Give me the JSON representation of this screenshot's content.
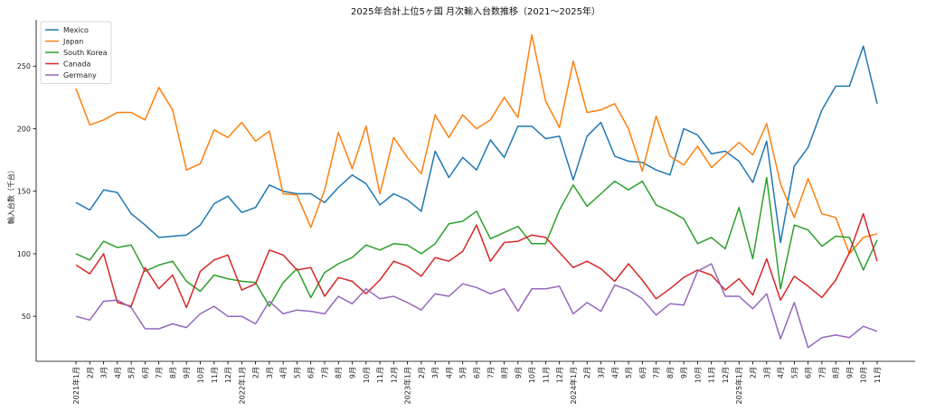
{
  "chart_data": {
    "type": "line",
    "title": "2025年合計上位5ヶ国 月次輸入台数推移（2021〜2025年）",
    "xlabel": "",
    "ylabel": "輸入台数（千台）",
    "ylim": [
      14,
      287
    ],
    "yticks": [
      50,
      100,
      150,
      200,
      250
    ],
    "grid": false,
    "legend_position": "top-left",
    "x": [
      "2021年1月",
      "2月",
      "3月",
      "4月",
      "5月",
      "6月",
      "7月",
      "8月",
      "9月",
      "10月",
      "11月",
      "12月",
      "2022年1月",
      "2月",
      "3月",
      "4月",
      "5月",
      "6月",
      "7月",
      "8月",
      "9月",
      "10月",
      "11月",
      "12月",
      "2023年1月",
      "2月",
      "3月",
      "4月",
      "5月",
      "6月",
      "7月",
      "8月",
      "9月",
      "10月",
      "11月",
      "12月",
      "2024年1月",
      "2月",
      "3月",
      "4月",
      "5月",
      "6月",
      "7月",
      "8月",
      "9月",
      "10月",
      "11月",
      "12月",
      "2025年1月",
      "2月",
      "3月",
      "4月",
      "5月",
      "6月",
      "7月",
      "8月",
      "9月",
      "10月",
      "11月"
    ],
    "series": [
      {
        "name": "Mexico",
        "color": "#1f77b4",
        "values": [
          141,
          135,
          151,
          149,
          132,
          123,
          113,
          114,
          115,
          123,
          140,
          146,
          133,
          137,
          155,
          150,
          148,
          148,
          141,
          153,
          163,
          156,
          139,
          148,
          143,
          134,
          182,
          161,
          177,
          167,
          191,
          177,
          202,
          202,
          192,
          194,
          159,
          194,
          205,
          178,
          174,
          173,
          167,
          163,
          200,
          195,
          180,
          182,
          174,
          157,
          190,
          109,
          170,
          185,
          215,
          234,
          234,
          266,
          220
        ]
      },
      {
        "name": "Japan",
        "color": "#ff7f0e",
        "values": [
          232,
          203,
          207,
          213,
          213,
          207,
          233,
          215,
          167,
          172,
          199,
          193,
          205,
          190,
          198,
          148,
          147,
          121,
          151,
          197,
          168,
          202,
          148,
          193,
          177,
          164,
          211,
          193,
          211,
          200,
          207,
          225,
          209,
          275,
          222,
          201,
          254,
          213,
          215,
          220,
          200,
          166,
          210,
          178,
          171,
          186,
          169,
          179,
          189,
          179,
          204,
          156,
          129,
          160,
          132,
          129,
          100,
          113,
          116
        ]
      },
      {
        "name": "South Korea",
        "color": "#2ca02c",
        "values": [
          100,
          95,
          110,
          105,
          107,
          86,
          91,
          94,
          78,
          70,
          83,
          80,
          78,
          77,
          58,
          77,
          88,
          65,
          85,
          92,
          97,
          107,
          103,
          108,
          107,
          100,
          108,
          124,
          126,
          134,
          112,
          117,
          122,
          108,
          108,
          135,
          155,
          138,
          148,
          158,
          151,
          158,
          139,
          134,
          128,
          108,
          113,
          104,
          137,
          96,
          161,
          72,
          123,
          119,
          106,
          114,
          113,
          87,
          111
        ]
      },
      {
        "name": "Canada",
        "color": "#d62728",
        "values": [
          91,
          84,
          100,
          61,
          58,
          89,
          72,
          83,
          57,
          86,
          95,
          99,
          71,
          76,
          103,
          99,
          87,
          89,
          66,
          81,
          78,
          68,
          79,
          94,
          90,
          82,
          97,
          94,
          102,
          123,
          94,
          109,
          110,
          115,
          113,
          101,
          89,
          94,
          88,
          78,
          92,
          79,
          64,
          72,
          81,
          87,
          83,
          71,
          80,
          67,
          96,
          63,
          82,
          74,
          65,
          79,
          101,
          132,
          94
        ]
      },
      {
        "name": "Germany",
        "color": "#9467bd",
        "values": [
          50,
          47,
          62,
          63,
          57,
          40,
          40,
          44,
          41,
          52,
          58,
          50,
          50,
          44,
          62,
          52,
          55,
          54,
          52,
          66,
          60,
          72,
          64,
          66,
          61,
          55,
          68,
          66,
          76,
          73,
          68,
          72,
          54,
          72,
          72,
          74,
          52,
          61,
          54,
          75,
          71,
          64,
          51,
          60,
          59,
          86,
          92,
          66,
          66,
          56,
          68,
          32,
          61,
          25,
          33,
          35,
          33,
          42,
          38
        ]
      }
    ]
  }
}
